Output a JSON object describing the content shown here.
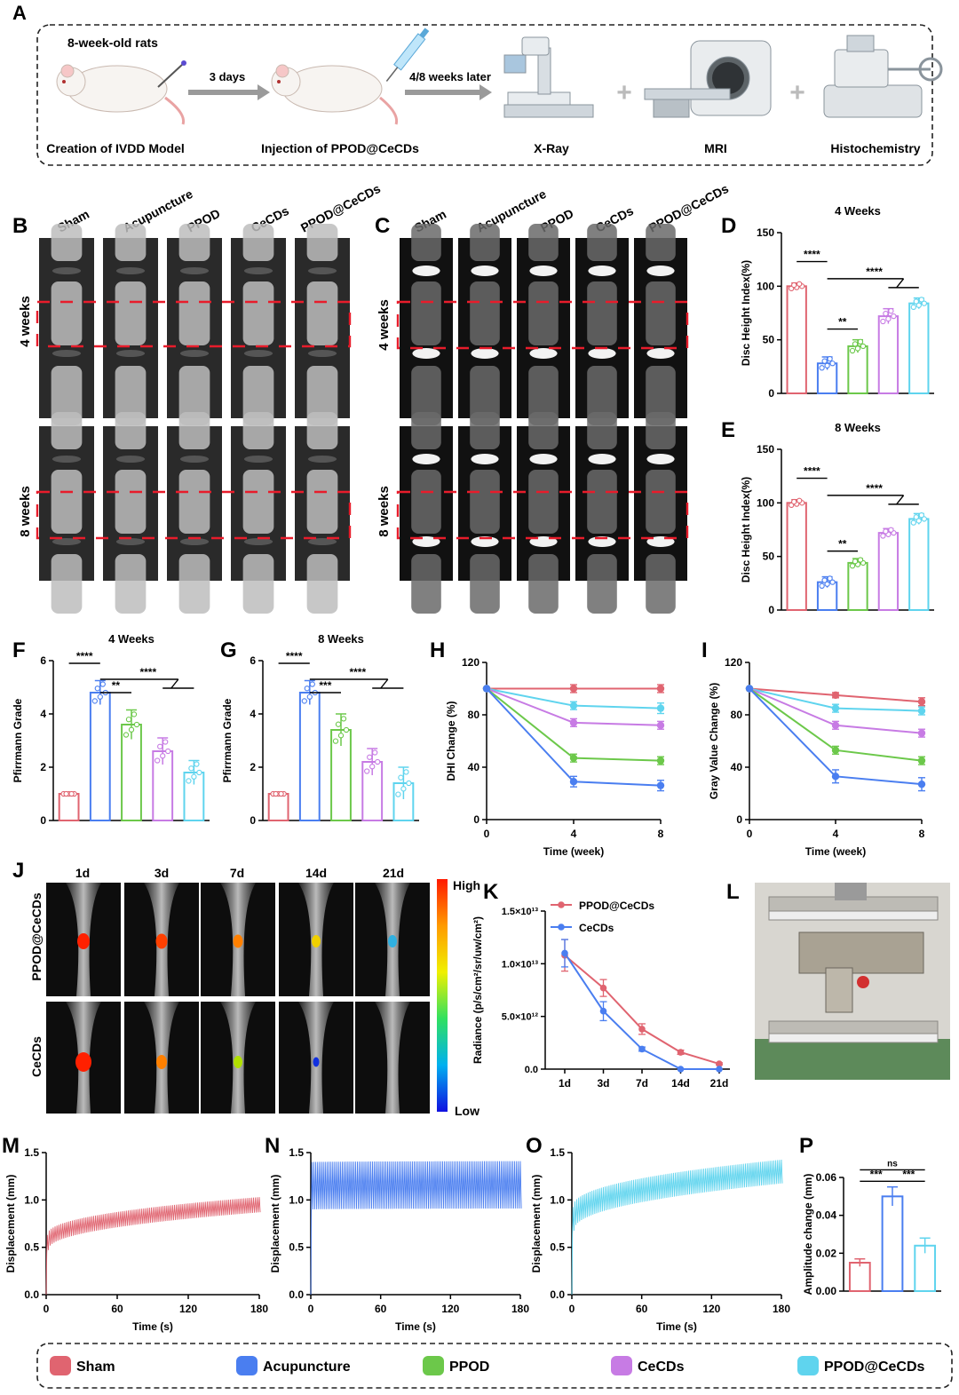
{
  "colors": {
    "sham": "#e06470",
    "acupuncture": "#4a7ef0",
    "ppod": "#6cc84a",
    "cecds": "#c77be4",
    "ppodcecds": "#5fd4ee",
    "sig": "#000000",
    "axis": "#000000",
    "image_bg": "#1c1c1c",
    "dash": "#e81c2b",
    "machine_bg": "#d8d6d0"
  },
  "panel_letters": [
    "A",
    "B",
    "C",
    "D",
    "E",
    "F",
    "G",
    "H",
    "I",
    "J",
    "K",
    "L",
    "M",
    "N",
    "O",
    "P"
  ],
  "workflow": {
    "rat_age": "8-week-old rats",
    "arrow1": "3 days",
    "arrow2": "4/8 weeks later",
    "steps": [
      "Creation of IVDD Model",
      "Injection of PPOD@CeCDs",
      "X-Ray",
      "MRI",
      "Histochemistry"
    ],
    "icons": [
      "rat-with-needle-icon",
      "rat-with-syringe-icon",
      "xray-machine-icon",
      "mri-scanner-icon",
      "microtome-icon"
    ]
  },
  "xray": {
    "groups": [
      "Sham",
      "Acupuncture",
      "PPOD",
      "CeCDs",
      "PPOD@CeCDs"
    ],
    "rows": [
      "4 weeks",
      "8 weeks"
    ]
  },
  "mri": {
    "groups": [
      "Sham",
      "Acupuncture",
      "PPOD",
      "CeCDs",
      "PPOD@CeCDs"
    ],
    "rows": [
      "4 weeks",
      "8 weeks"
    ]
  },
  "ivis": {
    "days": [
      "1d",
      "3d",
      "7d",
      "14d",
      "21d"
    ],
    "rows": [
      "PPOD@CeCDs",
      "CeCDs"
    ],
    "scale_high": "High",
    "scale_low": "Low"
  },
  "legend": {
    "items": [
      {
        "label": "Sham",
        "color": "#e06470"
      },
      {
        "label": "Acupuncture",
        "color": "#4a7ef0"
      },
      {
        "label": "PPOD",
        "color": "#6cc84a"
      },
      {
        "label": "CeCDs",
        "color": "#c77be4"
      },
      {
        "label": "PPOD@CeCDs",
        "color": "#5fd4ee"
      }
    ]
  },
  "chart_data": [
    {
      "id": "D",
      "type": "bar",
      "title": "4 Weeks",
      "xlabel": "",
      "ylabel": "Disc Height Index(%)",
      "ylim": [
        0,
        150
      ],
      "yticks": [
        0,
        50,
        100,
        150
      ],
      "categories": [
        "Sham",
        "Acupuncture",
        "PPOD",
        "CeCDs",
        "PPOD@CeCDs"
      ],
      "values": [
        100,
        28,
        44,
        72,
        84
      ],
      "errors": [
        3,
        6,
        6,
        7,
        5
      ],
      "significance": [
        {
          "label": "****",
          "from": 0,
          "to": 1,
          "level": 123
        },
        {
          "label": "****",
          "from": 1,
          "to": [
            3,
            4
          ],
          "level": 107
        },
        {
          "label": "**",
          "from": 1,
          "to": 2,
          "level": 60
        }
      ]
    },
    {
      "id": "E",
      "type": "bar",
      "title": "8 Weeks",
      "xlabel": "",
      "ylabel": "Disc Height Index(%)",
      "ylim": [
        0,
        150
      ],
      "yticks": [
        0,
        50,
        100,
        150
      ],
      "categories": [
        "Sham",
        "Acupuncture",
        "PPOD",
        "CeCDs",
        "PPOD@CeCDs"
      ],
      "values": [
        100,
        26,
        44,
        72,
        85
      ],
      "errors": [
        3,
        5,
        4,
        4,
        5
      ],
      "significance": [
        {
          "label": "****",
          "from": 0,
          "to": 1,
          "level": 123
        },
        {
          "label": "****",
          "from": 1,
          "to": [
            3,
            4
          ],
          "level": 107
        },
        {
          "label": "**",
          "from": 1,
          "to": 2,
          "level": 55
        }
      ]
    },
    {
      "id": "F",
      "type": "bar",
      "title": "4 Weeks",
      "xlabel": "",
      "ylabel": "Pfirrmann Grade",
      "ylim": [
        0,
        6
      ],
      "yticks": [
        0,
        2,
        4,
        6
      ],
      "categories": [
        "Sham",
        "Acupuncture",
        "PPOD",
        "CeCDs",
        "PPOD@CeCDs"
      ],
      "values": [
        1,
        4.8,
        3.6,
        2.6,
        1.8
      ],
      "errors": [
        0,
        0.45,
        0.55,
        0.5,
        0.45
      ],
      "significance": [
        {
          "label": "****",
          "from": 0,
          "to": 1,
          "level": 5.9
        },
        {
          "label": "****",
          "from": 1,
          "to": [
            3,
            4
          ],
          "level": 5.3
        },
        {
          "label": "**",
          "from": 1,
          "to": 2,
          "level": 4.8
        }
      ]
    },
    {
      "id": "G",
      "type": "bar",
      "title": "8 Weeks",
      "xlabel": "",
      "ylabel": "Pfirrmann Grade",
      "ylim": [
        0,
        6
      ],
      "yticks": [
        0,
        2,
        4,
        6
      ],
      "categories": [
        "Sham",
        "Acupuncture",
        "PPOD",
        "CeCDs",
        "PPOD@CeCDs"
      ],
      "values": [
        1,
        4.8,
        3.4,
        2.2,
        1.4
      ],
      "errors": [
        0,
        0.45,
        0.6,
        0.5,
        0.6
      ],
      "significance": [
        {
          "label": "****",
          "from": 0,
          "to": 1,
          "level": 5.9
        },
        {
          "label": "****",
          "from": 1,
          "to": [
            3,
            4
          ],
          "level": 5.3
        },
        {
          "label": "***",
          "from": 1,
          "to": 2,
          "level": 4.8
        }
      ]
    },
    {
      "id": "H",
      "type": "line",
      "title": "",
      "xlabel": "Time (week)",
      "ylabel": "DHI Change (%)",
      "x": [
        0,
        4,
        8
      ],
      "xlim": [
        0,
        8
      ],
      "xticks": [
        0,
        4,
        8
      ],
      "ylim": [
        0,
        120
      ],
      "yticks": [
        0,
        40,
        80,
        120
      ],
      "series": [
        {
          "name": "Sham",
          "values": [
            100,
            100,
            100
          ],
          "errors": [
            0,
            3,
            3
          ]
        },
        {
          "name": "PPOD@CeCDs",
          "values": [
            100,
            87,
            85
          ],
          "errors": [
            0,
            3,
            4
          ]
        },
        {
          "name": "CeCDs",
          "values": [
            100,
            74,
            72
          ],
          "errors": [
            0,
            3,
            3
          ]
        },
        {
          "name": "PPOD",
          "values": [
            100,
            47,
            45
          ],
          "errors": [
            0,
            3,
            3
          ]
        },
        {
          "name": "Acupuncture",
          "values": [
            100,
            29,
            26
          ],
          "errors": [
            0,
            4,
            4
          ]
        }
      ]
    },
    {
      "id": "I",
      "type": "line",
      "title": "",
      "xlabel": "Time (week)",
      "ylabel": "Gray Value Change (%)",
      "x": [
        0,
        4,
        8
      ],
      "xlim": [
        0,
        8
      ],
      "xticks": [
        0,
        4,
        8
      ],
      "ylim": [
        0,
        120
      ],
      "yticks": [
        0,
        40,
        80,
        120
      ],
      "series": [
        {
          "name": "Sham",
          "values": [
            100,
            95,
            90
          ],
          "errors": [
            0,
            2,
            3
          ]
        },
        {
          "name": "PPOD@CeCDs",
          "values": [
            100,
            85,
            83
          ],
          "errors": [
            0,
            3,
            3
          ]
        },
        {
          "name": "CeCDs",
          "values": [
            100,
            72,
            66
          ],
          "errors": [
            0,
            3,
            3
          ]
        },
        {
          "name": "PPOD",
          "values": [
            100,
            53,
            45
          ],
          "errors": [
            0,
            3,
            3
          ]
        },
        {
          "name": "Acupuncture",
          "values": [
            100,
            33,
            27
          ],
          "errors": [
            0,
            5,
            5
          ]
        }
      ]
    },
    {
      "id": "K",
      "type": "line",
      "title": "",
      "xlabel": "",
      "ylabel": "Radiance (p/s/cm²/sr/uw/cm²)",
      "categories": [
        "1d",
        "3d",
        "7d",
        "14d",
        "21d"
      ],
      "ylim": [
        0,
        15000000000000
      ],
      "ytick_labels": [
        "0.0",
        "5.0×10¹²",
        "1.0×10¹³",
        "1.5×10¹³"
      ],
      "series": [
        {
          "name": "PPOD@CeCDs",
          "values": [
            10800000000000,
            7700000000000,
            3800000000000,
            1600000000000,
            500000000000
          ],
          "errors": [
            1500000000000,
            800000000000,
            500000000000,
            200000000000,
            100000000000
          ]
        },
        {
          "name": "CeCDs",
          "values": [
            11000000000000,
            5500000000000,
            1900000000000,
            0,
            0
          ],
          "errors": [
            1300000000000,
            900000000000,
            200000000000,
            0,
            0
          ]
        }
      ]
    },
    {
      "id": "M",
      "type": "line",
      "title": "",
      "xlabel": "Time (s)",
      "ylabel": "Displacement (mm)",
      "group": "Sham",
      "xlim": [
        0,
        180
      ],
      "xticks": [
        0,
        60,
        120,
        180
      ],
      "ylim": [
        0,
        1.5
      ],
      "yticks": [
        "0.0",
        "0.5",
        "1.0",
        "1.5"
      ],
      "baseline_start": 0.55,
      "baseline_end": 0.95,
      "amplitude": 0.16,
      "cycles": 110
    },
    {
      "id": "N",
      "type": "line",
      "title": "",
      "xlabel": "Time (s)",
      "ylabel": "Displacement (mm)",
      "group": "Acupuncture",
      "xlim": [
        0,
        180
      ],
      "xticks": [
        0,
        60,
        120,
        180
      ],
      "ylim": [
        0,
        1.5
      ],
      "yticks": [
        "0.0",
        "0.5",
        "1.0",
        "1.5"
      ],
      "baseline_start": 1.15,
      "baseline_end": 1.16,
      "amplitude": 0.5,
      "cycles": 110
    },
    {
      "id": "O",
      "type": "line",
      "title": "",
      "xlabel": "Time (s)",
      "ylabel": "Displacement (mm)",
      "group": "PPOD@CeCDs",
      "xlim": [
        0,
        180
      ],
      "xticks": [
        0,
        60,
        120,
        180
      ],
      "ylim": [
        0,
        1.5
      ],
      "yticks": [
        "0.0",
        "0.5",
        "1.0",
        "1.5"
      ],
      "baseline_start": 0.8,
      "baseline_end": 1.3,
      "amplitude": 0.25,
      "cycles": 110
    },
    {
      "id": "P",
      "type": "bar",
      "title": "",
      "xlabel": "",
      "ylabel": "Amplitude change (mm)",
      "ylim": [
        0,
        0.06
      ],
      "yticks": [
        "0.00",
        "0.02",
        "0.04",
        "0.06"
      ],
      "categories": [
        "Sham",
        "Acupuncture",
        "PPOD@CeCDs"
      ],
      "values": [
        0.015,
        0.05,
        0.024
      ],
      "errors": [
        0.002,
        0.005,
        0.004
      ],
      "significance": [
        {
          "label": "ns",
          "from": 0,
          "to": 2,
          "level": 0.064
        },
        {
          "label": "***",
          "from": 0,
          "to": 1,
          "level": 0.058
        },
        {
          "label": "***",
          "from": 1,
          "to": 2,
          "level": 0.058
        }
      ]
    }
  ]
}
